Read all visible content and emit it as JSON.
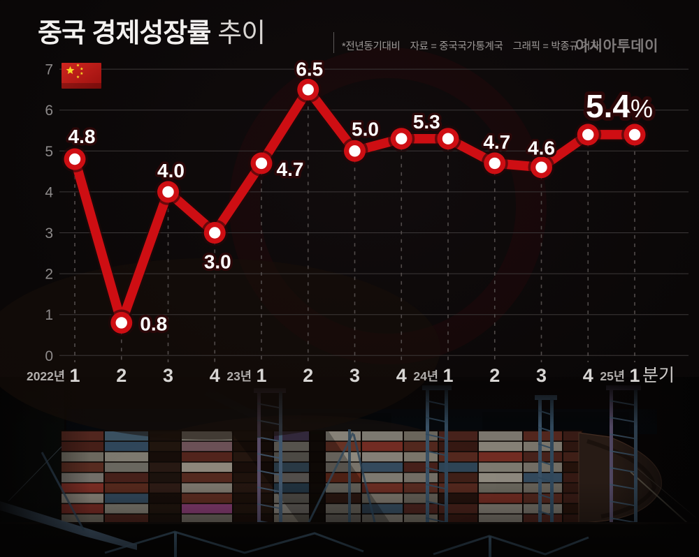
{
  "header": {
    "title_main": "중국 경제성장률",
    "title_sub": "추이",
    "note": "*전년동기대비",
    "source": "자료 = 중국국가통계국",
    "credit": "그래픽 = 박종규 기자",
    "logo": "아시아투데이"
  },
  "chart_data": {
    "type": "line",
    "title": "중국 경제성장률 추이",
    "unit": "%",
    "ylim": [
      0,
      7
    ],
    "yticks": [
      0,
      1,
      2,
      3,
      4,
      5,
      6,
      7
    ],
    "grid": true,
    "legend": "none",
    "line_color": "#ce0e13",
    "marker_fill": "#ffffff",
    "label_outline_color": "#2b0708",
    "x_labels": [
      {
        "year": "2022년",
        "quarter": "1"
      },
      {
        "quarter": "2"
      },
      {
        "quarter": "3"
      },
      {
        "quarter": "4"
      },
      {
        "year": "23년",
        "quarter": "1"
      },
      {
        "quarter": "2"
      },
      {
        "quarter": "3"
      },
      {
        "quarter": "4"
      },
      {
        "year": "24년",
        "quarter": "1"
      },
      {
        "quarter": "2"
      },
      {
        "quarter": "3"
      },
      {
        "quarter": "4"
      },
      {
        "year": "25년",
        "quarter": "1",
        "suffix": "분기"
      }
    ],
    "values": [
      4.8,
      0.8,
      4.0,
      3.0,
      4.7,
      6.5,
      5.0,
      5.3,
      5.3,
      4.7,
      4.6,
      5.4,
      5.4
    ],
    "point_labels": [
      {
        "index": 0,
        "text": "4.8",
        "placement": "above"
      },
      {
        "index": 1,
        "text": "0.8",
        "placement": "right"
      },
      {
        "index": 2,
        "text": "4.0",
        "placement": "above"
      },
      {
        "index": 3,
        "text": "3.0",
        "placement": "below"
      },
      {
        "index": 4,
        "text": "4.7",
        "placement": "right-below"
      },
      {
        "index": 5,
        "text": "6.5",
        "placement": "above"
      },
      {
        "index": 6,
        "text": "5.0",
        "placement": "above-right"
      },
      {
        "index": 7,
        "text": "5.3",
        "placement": "above-right"
      },
      {
        "index": 9,
        "text": "4.7",
        "placement": "above"
      },
      {
        "index": 10,
        "text": "4.6",
        "placement": "above"
      },
      {
        "index": 12,
        "text": "5.4",
        "suffix": "%",
        "placement": "above-left",
        "emphasis": true
      }
    ],
    "flag_icon": "china-flag"
  }
}
